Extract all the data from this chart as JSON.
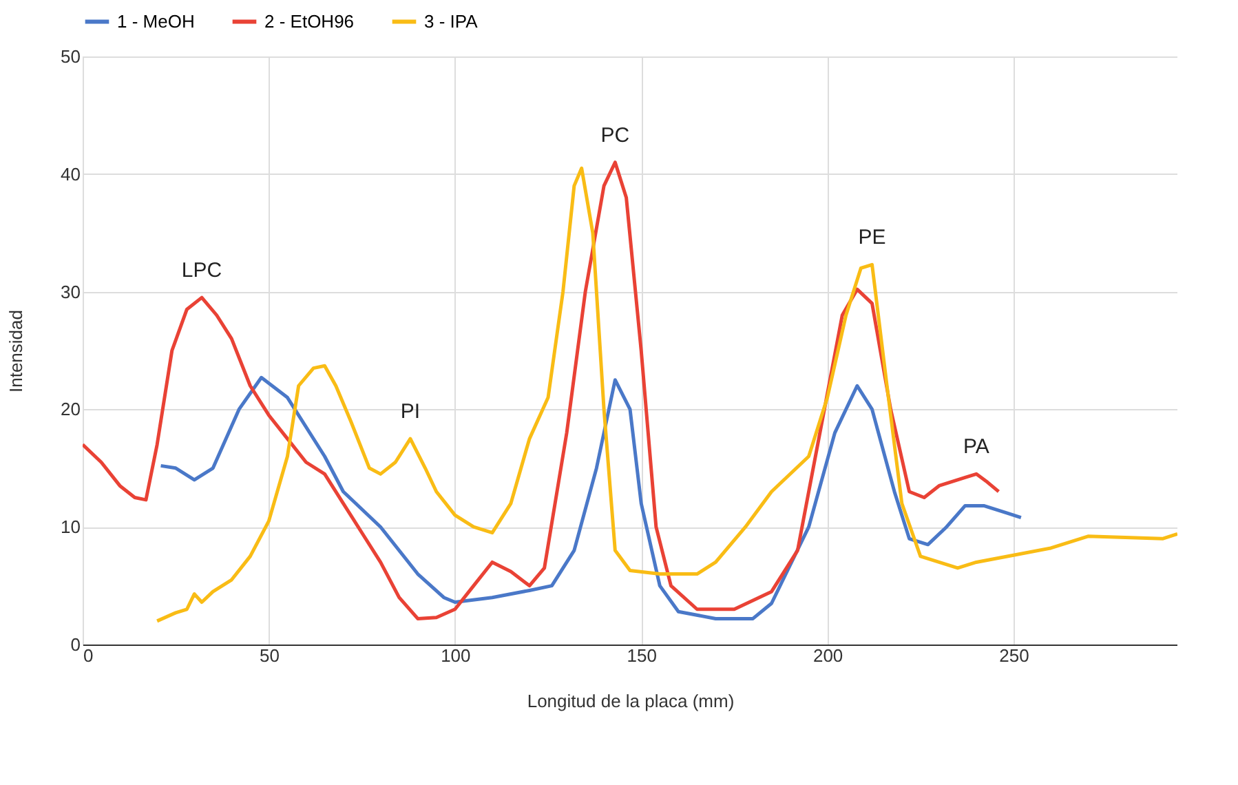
{
  "chart_data": {
    "type": "line",
    "xlabel": "Longitud de la placa (mm)",
    "ylabel": "Intensidad",
    "xlim": [
      0,
      294
    ],
    "xticks": [
      0,
      50,
      100,
      150,
      200,
      250
    ],
    "ylim": [
      0,
      50
    ],
    "yticks": [
      0,
      10,
      20,
      30,
      40,
      50
    ],
    "grid": true,
    "legend": "top",
    "line_style": "solid",
    "series": [
      {
        "name": "1 - MeOH",
        "color": "#4a78c8",
        "x": [
          21,
          25,
          30,
          35,
          42,
          48,
          55,
          65,
          70,
          80,
          90,
          97,
          100,
          110,
          120,
          126,
          132,
          138,
          143,
          147,
          150,
          155,
          160,
          170,
          180,
          185,
          195,
          202,
          208,
          212,
          218,
          222,
          227,
          232,
          237,
          242,
          248,
          252
        ],
        "values": [
          15.2,
          15,
          14,
          15,
          20,
          22.7,
          21,
          16,
          13,
          10,
          6,
          4,
          3.6,
          4,
          4.6,
          5,
          8,
          15,
          22.5,
          20,
          12,
          5,
          2.8,
          2.2,
          2.2,
          3.5,
          10,
          18,
          22,
          20,
          13,
          9,
          8.5,
          10,
          11.8,
          11.8,
          11.2,
          10.8
        ]
      },
      {
        "name": "2 - EtOH96",
        "color": "#e94235",
        "x": [
          0,
          5,
          10,
          14,
          17,
          20,
          24,
          28,
          32,
          36,
          40,
          45,
          50,
          55,
          60,
          65,
          70,
          75,
          80,
          85,
          90,
          95,
          100,
          105,
          110,
          115,
          120,
          124,
          130,
          135,
          140,
          143,
          146,
          150,
          154,
          158,
          165,
          175,
          185,
          192,
          198,
          204,
          208,
          212,
          217,
          222,
          226,
          230,
          237,
          240,
          243,
          246
        ],
        "values": [
          17,
          15.5,
          13.5,
          12.5,
          12.3,
          17,
          25,
          28.5,
          29.5,
          28,
          26,
          22,
          19.5,
          17.5,
          15.5,
          14.5,
          12,
          9.5,
          7,
          4,
          2.2,
          2.3,
          3,
          5,
          7,
          6.2,
          5,
          6.5,
          18,
          30,
          39,
          41,
          38,
          25,
          10,
          5,
          3,
          3,
          4.5,
          8,
          18,
          28,
          30.2,
          29,
          20,
          13,
          12.5,
          13.5,
          14.2,
          14.5,
          13.8,
          13
        ]
      },
      {
        "name": "3 - IPA",
        "color": "#f9bc15",
        "x": [
          20,
          25,
          28,
          30,
          32,
          35,
          40,
          45,
          50,
          55,
          58,
          62,
          65,
          68,
          72,
          77,
          80,
          84,
          88,
          92,
          95,
          100,
          105,
          110,
          115,
          120,
          125,
          129,
          132,
          134,
          137,
          140,
          143,
          147,
          155,
          165,
          170,
          178,
          185,
          195,
          200,
          205,
          209,
          212,
          216,
          220,
          225,
          230,
          235,
          240,
          250,
          260,
          270,
          280,
          290,
          294
        ],
        "values": [
          2,
          2.7,
          3,
          4.3,
          3.6,
          4.5,
          5.5,
          7.5,
          10.5,
          16,
          22,
          23.5,
          23.7,
          22,
          19,
          15,
          14.5,
          15.5,
          17.5,
          15,
          13,
          11,
          10,
          9.5,
          12,
          17.5,
          21,
          30,
          39,
          40.5,
          35,
          20,
          8,
          6.3,
          6,
          6,
          7,
          10,
          13,
          16,
          21,
          28,
          32,
          32.3,
          22,
          12,
          7.5,
          7,
          6.5,
          7,
          7.6,
          8.2,
          9.2,
          9.1,
          9,
          9.4
        ]
      }
    ],
    "annotations": [
      {
        "text": "LPC",
        "x": 32,
        "y": 29.5
      },
      {
        "text": "PI",
        "x": 88,
        "y": 17.5
      },
      {
        "text": "PC",
        "x": 143,
        "y": 41
      },
      {
        "text": "PE",
        "x": 212,
        "y": 32.3
      },
      {
        "text": "PA",
        "x": 240,
        "y": 14.5
      }
    ]
  }
}
